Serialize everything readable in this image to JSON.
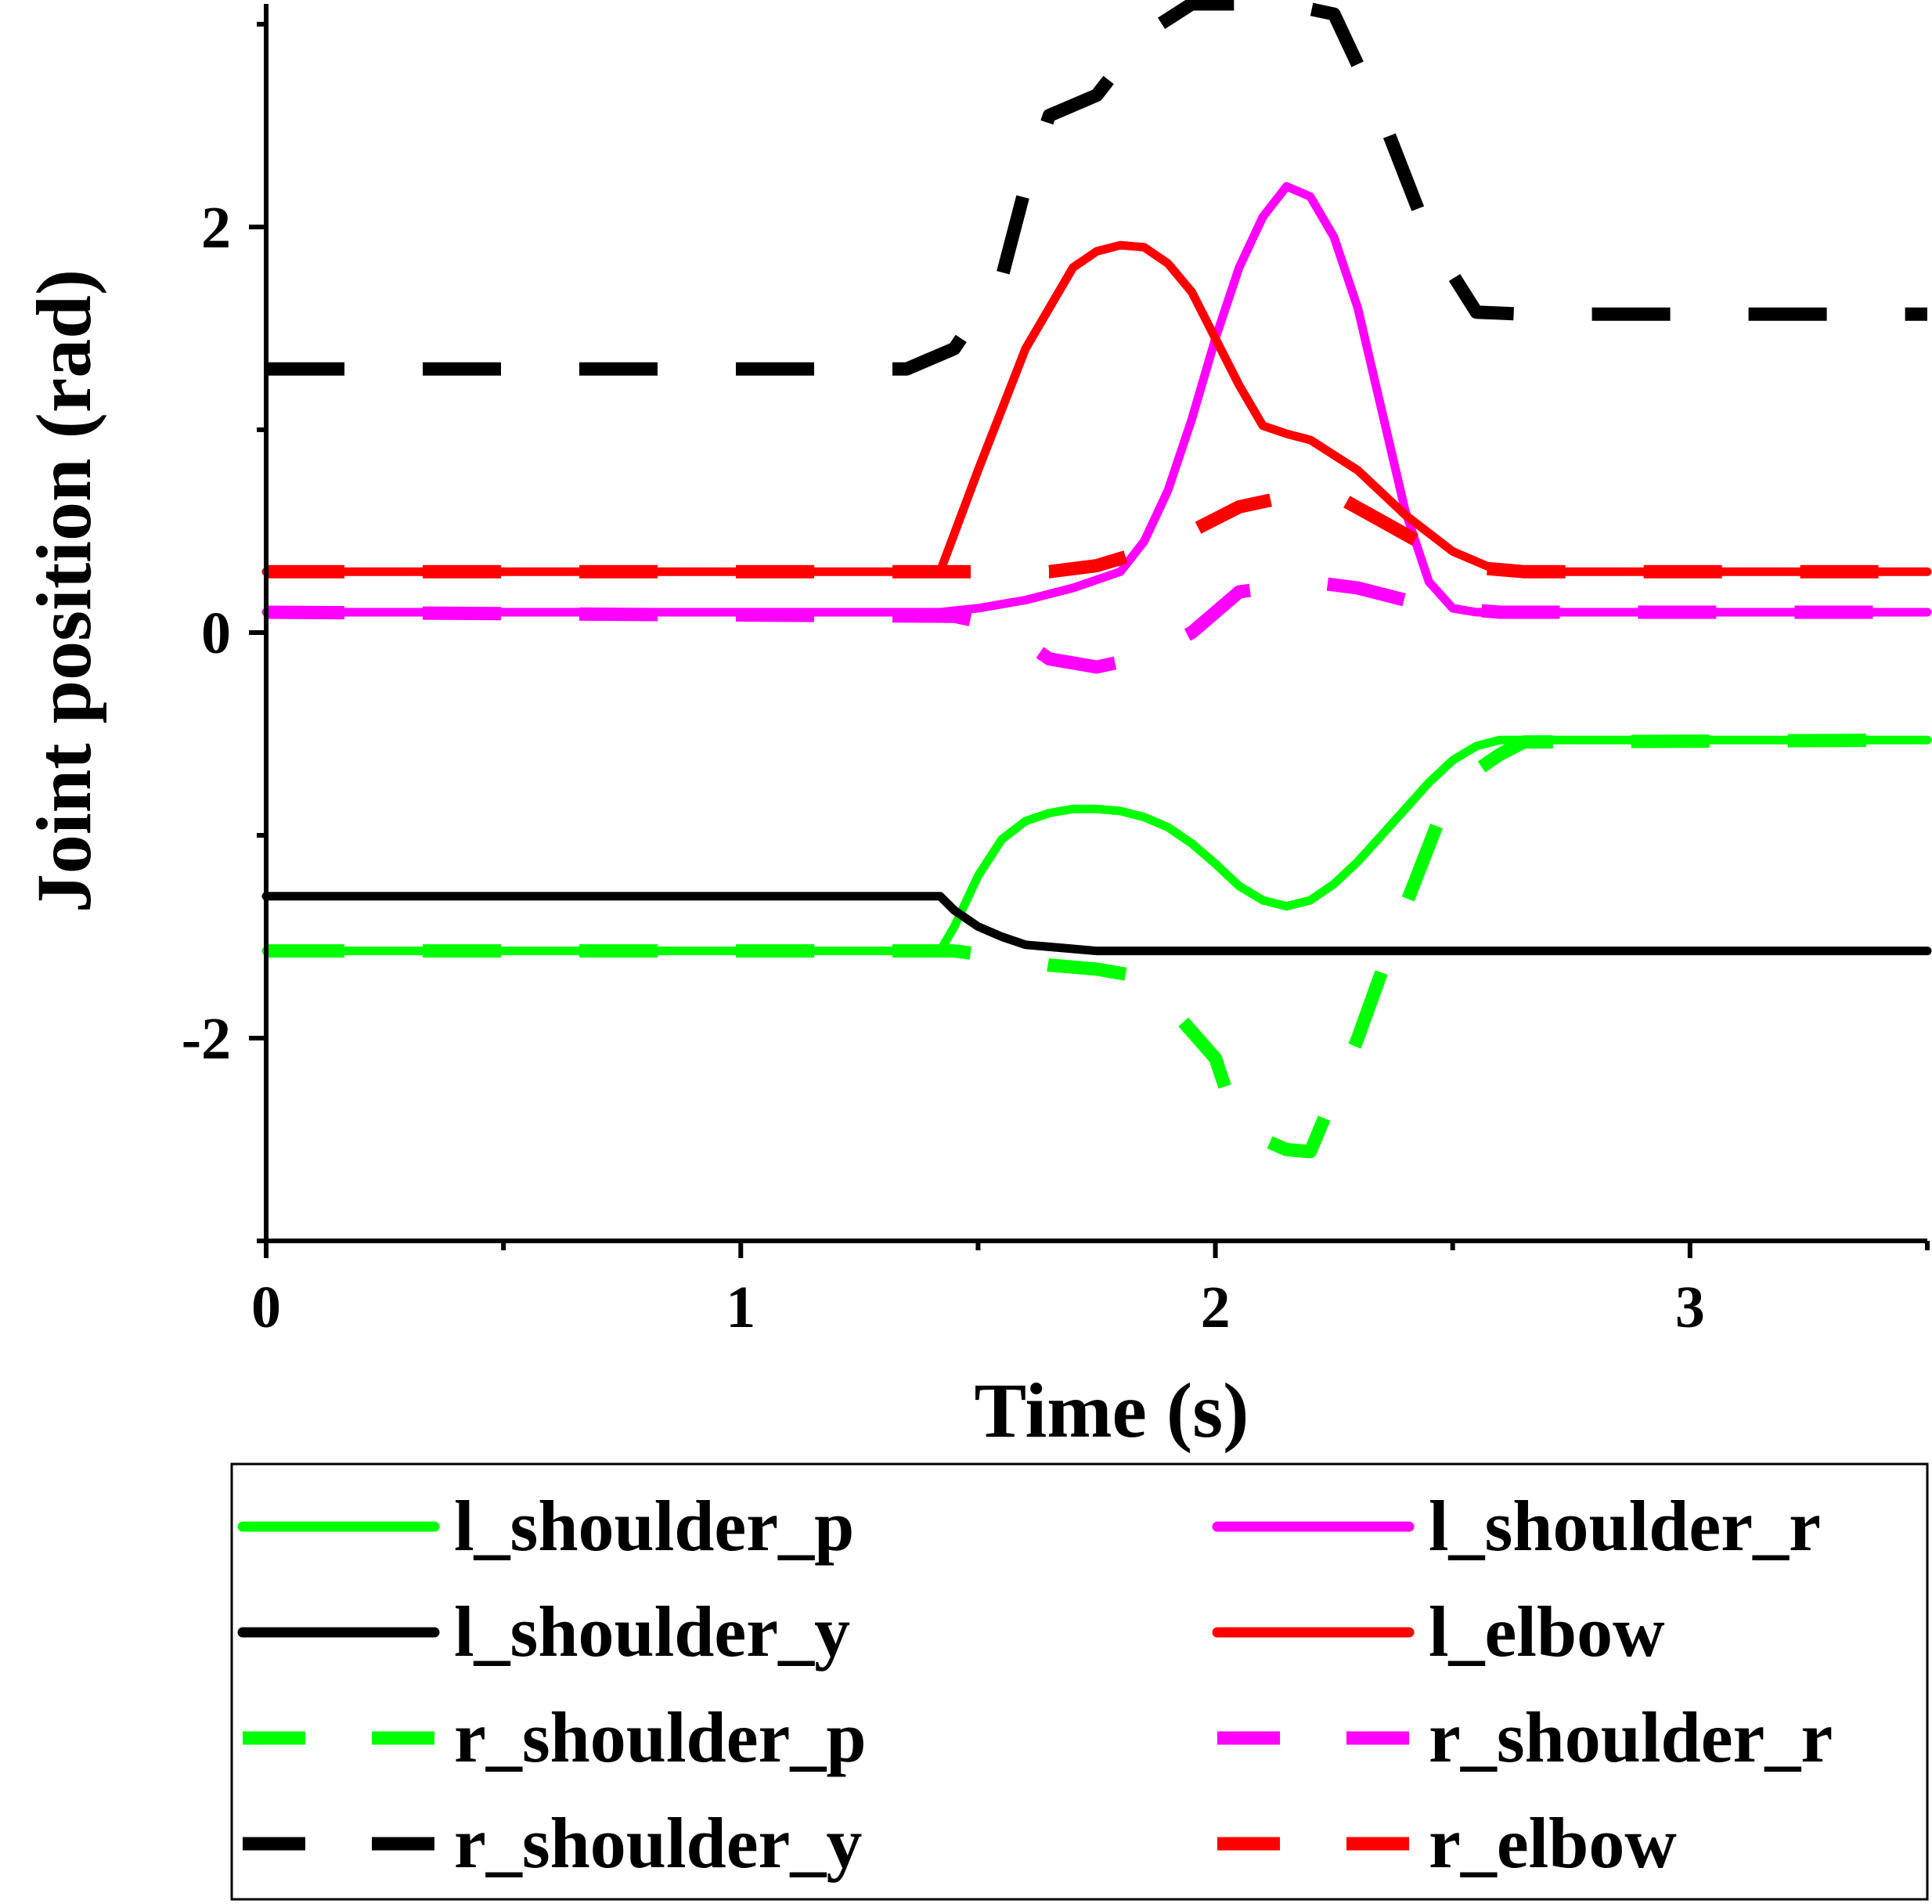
{
  "chart_data": {
    "type": "line",
    "xlabel": "Time (s)",
    "ylabel": "Joint position (rad)",
    "xlim": [
      0,
      3.5
    ],
    "ylim": [
      -3,
      3.1
    ],
    "x_ticks": [
      0,
      1,
      2,
      3
    ],
    "x_minor_ticks": [
      0.5,
      1.5,
      2.5,
      3.5
    ],
    "y_ticks": [
      -2,
      0,
      2
    ],
    "y_minor_ticks": [
      -3,
      -1,
      1,
      3
    ],
    "grid": false,
    "legend_position": "bottom",
    "series": [
      {
        "name": "l_shoulder_p",
        "color": "#00ff00",
        "style": "solid",
        "x": [
          0,
          1.42,
          1.45,
          1.5,
          1.55,
          1.6,
          1.65,
          1.7,
          1.75,
          1.8,
          1.85,
          1.9,
          1.95,
          2.0,
          2.05,
          2.1,
          2.15,
          2.2,
          2.25,
          2.3,
          2.35,
          2.4,
          2.45,
          2.5,
          2.55,
          2.6,
          3.5
        ],
        "y": [
          -1.57,
          -1.57,
          -1.45,
          -1.2,
          -1.02,
          -0.93,
          -0.89,
          -0.87,
          -0.87,
          -0.88,
          -0.91,
          -0.96,
          -1.04,
          -1.14,
          -1.25,
          -1.32,
          -1.35,
          -1.32,
          -1.24,
          -1.13,
          -1.0,
          -0.87,
          -0.74,
          -0.63,
          -0.56,
          -0.53,
          -0.53
        ]
      },
      {
        "name": "l_shoulder_r",
        "color": "#ff00ff",
        "style": "solid",
        "x": [
          0,
          1.42,
          1.5,
          1.6,
          1.7,
          1.8,
          1.85,
          1.9,
          1.95,
          2.0,
          2.05,
          2.1,
          2.15,
          2.2,
          2.25,
          2.3,
          2.35,
          2.4,
          2.45,
          2.5,
          2.55,
          3.5
        ],
        "y": [
          0.1,
          0.1,
          0.12,
          0.16,
          0.22,
          0.3,
          0.45,
          0.7,
          1.05,
          1.45,
          1.8,
          2.05,
          2.2,
          2.15,
          1.95,
          1.6,
          1.1,
          0.6,
          0.25,
          0.12,
          0.1,
          0.1
        ]
      },
      {
        "name": "l_shoulder_y",
        "color": "#000000",
        "style": "solid",
        "x": [
          0,
          1.42,
          1.45,
          1.5,
          1.55,
          1.6,
          1.65,
          1.7,
          1.75,
          1.8,
          3.5
        ],
        "y": [
          -1.3,
          -1.3,
          -1.37,
          -1.45,
          -1.5,
          -1.54,
          -1.55,
          -1.56,
          -1.57,
          -1.57,
          -1.57
        ]
      },
      {
        "name": "l_elbow",
        "color": "#ff0000",
        "style": "solid",
        "x": [
          0,
          1.42,
          1.5,
          1.6,
          1.7,
          1.75,
          1.8,
          1.85,
          1.9,
          1.95,
          2.0,
          2.05,
          2.1,
          2.15,
          2.2,
          2.3,
          2.4,
          2.5,
          2.6,
          3.5
        ],
        "y": [
          0.3,
          0.3,
          0.8,
          1.4,
          1.8,
          1.88,
          1.91,
          1.9,
          1.82,
          1.68,
          1.45,
          1.22,
          1.02,
          0.98,
          0.95,
          0.8,
          0.58,
          0.4,
          0.3,
          0.3
        ]
      },
      {
        "name": "r_shoulder_p",
        "color": "#00ff00",
        "style": "dashed",
        "x": [
          0,
          1.45,
          1.55,
          1.65,
          1.75,
          1.85,
          2.0,
          2.05,
          2.15,
          2.2,
          2.3,
          2.4,
          2.45,
          2.5,
          2.55,
          2.6,
          2.65,
          3.5
        ],
        "y": [
          -1.57,
          -1.57,
          -1.6,
          -1.64,
          -1.66,
          -1.7,
          -2.1,
          -2.45,
          -2.55,
          -2.56,
          -2.0,
          -1.35,
          -1.05,
          -0.75,
          -0.68,
          -0.6,
          -0.54,
          -0.53
        ]
      },
      {
        "name": "r_shoulder_r",
        "color": "#ff00ff",
        "style": "dashed",
        "x": [
          0,
          1.45,
          1.55,
          1.6,
          1.65,
          1.75,
          1.85,
          1.95,
          2.05,
          2.2,
          2.3,
          2.4,
          2.5,
          2.6,
          3.5
        ],
        "y": [
          0.1,
          0.08,
          0.03,
          -0.05,
          -0.13,
          -0.17,
          -0.12,
          0.0,
          0.2,
          0.25,
          0.22,
          0.16,
          0.12,
          0.1,
          0.1
        ]
      },
      {
        "name": "r_shoulder_y",
        "color": "#000000",
        "style": "dashed",
        "x": [
          0,
          1.35,
          1.45,
          1.55,
          1.6,
          1.65,
          1.75,
          1.85,
          1.95,
          2.05,
          2.15,
          2.25,
          2.35,
          2.45,
          2.55,
          2.65,
          3.5
        ],
        "y": [
          1.3,
          1.3,
          1.4,
          1.75,
          2.2,
          2.55,
          2.65,
          2.95,
          3.1,
          3.1,
          3.1,
          3.05,
          2.55,
          1.95,
          1.58,
          1.57,
          1.57
        ]
      },
      {
        "name": "r_elbow",
        "color": "#ff0000",
        "style": "dashed",
        "x": [
          0,
          1.45,
          1.55,
          1.65,
          1.75,
          1.85,
          1.95,
          2.05,
          2.15,
          2.25,
          2.35,
          2.45,
          2.55,
          2.65,
          3.5
        ],
        "y": [
          0.3,
          0.3,
          0.3,
          0.3,
          0.33,
          0.4,
          0.5,
          0.62,
          0.67,
          0.68,
          0.55,
          0.42,
          0.32,
          0.3,
          0.3
        ]
      }
    ]
  }
}
